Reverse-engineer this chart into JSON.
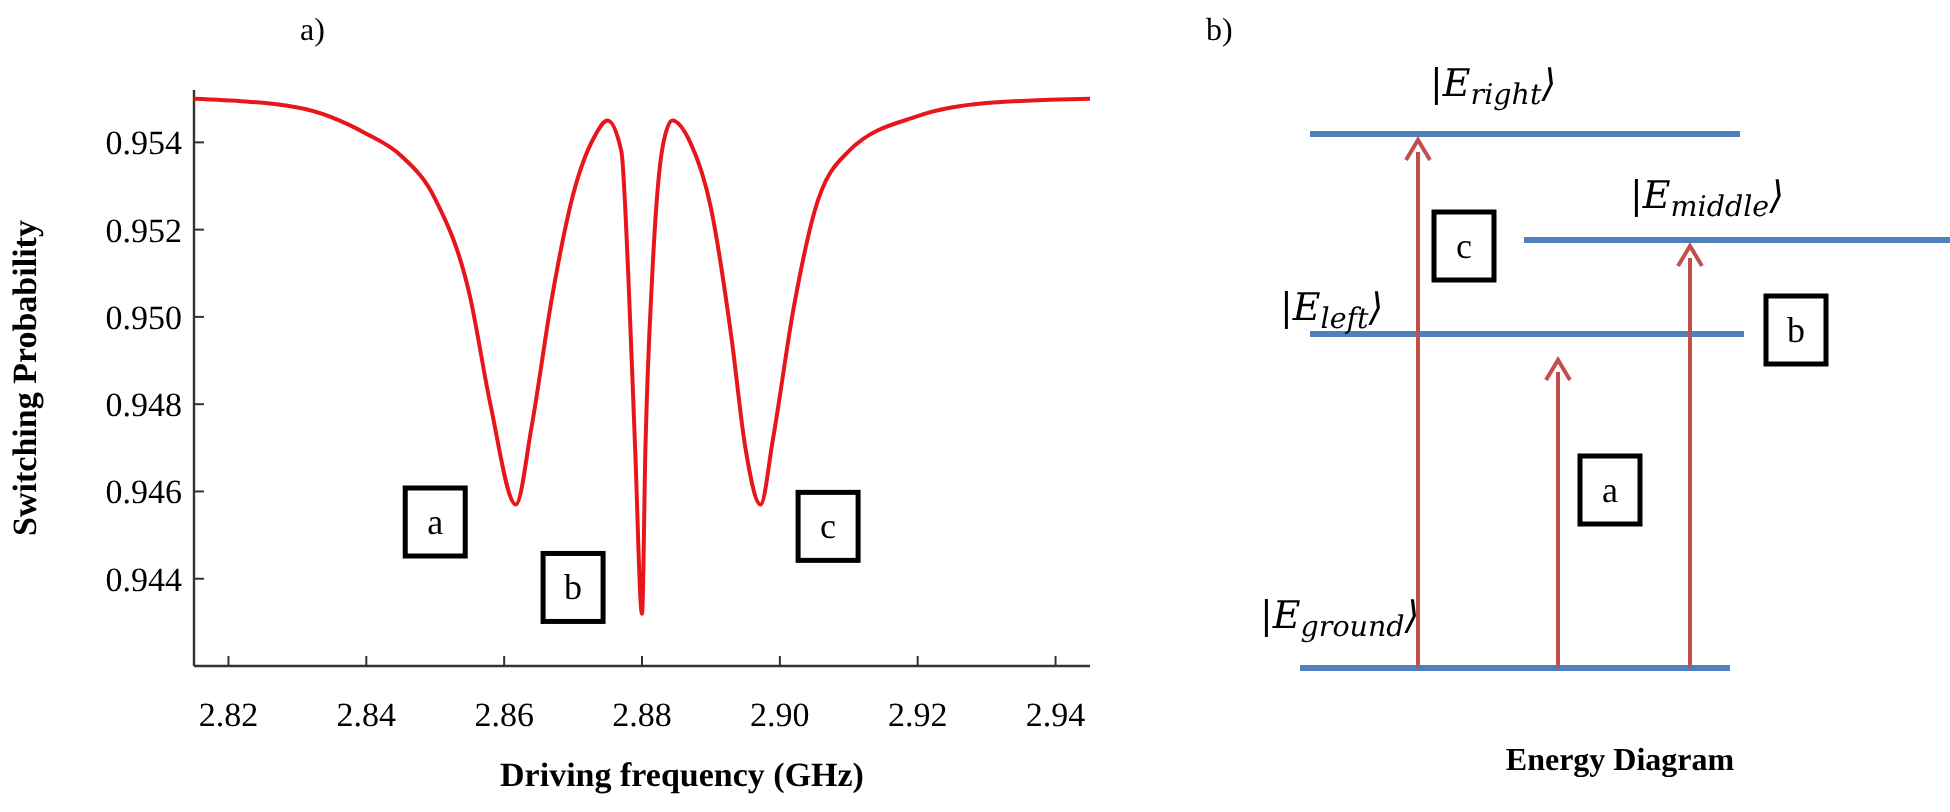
{
  "chart_data": [
    {
      "type": "line",
      "title": "a)",
      "xlabel": "Driving frequency (GHz)",
      "ylabel": "Switching Probability",
      "xlim": [
        2.815,
        2.945
      ],
      "xticks": [
        2.82,
        2.84,
        2.86,
        2.88,
        {
          "value": 2.9,
          "label": "2.90"
        },
        2.92,
        2.94
      ],
      "ylim": [
        0.942,
        0.9552
      ],
      "yticks": [
        0.944,
        0.946,
        0.948,
        {
          "value": 0.95,
          "label": "0.950"
        },
        0.952,
        0.954
      ],
      "marker": "none",
      "line_style": "solid",
      "series": [
        {
          "color": "#e8161b",
          "x": [
            2.815,
            2.83,
            2.84,
            2.845,
            2.85,
            2.855,
            2.858,
            2.8617,
            2.864,
            2.867,
            2.87,
            2.873,
            2.875,
            2.877,
            2.878,
            2.879,
            2.88,
            2.8805,
            2.8815,
            2.883,
            2.8844,
            2.887,
            2.89,
            2.893,
            2.895,
            2.8972,
            2.899,
            2.902,
            2.905,
            2.91,
            2.92,
            2.93,
            2.945
          ],
          "values": [
            0.955,
            0.9548,
            0.9542,
            0.9537,
            0.9527,
            0.9505,
            0.948,
            0.9457,
            0.9475,
            0.9505,
            0.9528,
            0.9541,
            0.9545,
            0.9538,
            0.951,
            0.947,
            0.9432,
            0.947,
            0.951,
            0.9539,
            0.9545,
            0.954,
            0.9525,
            0.9495,
            0.947,
            0.9457,
            0.9472,
            0.9502,
            0.9524,
            0.9538,
            0.9546,
            0.9549,
            0.955
          ]
        }
      ],
      "annotations": [
        {
          "text": "a",
          "x": 2.85,
          "y": 0.9453
        },
        {
          "text": "b",
          "x": 2.87,
          "y": 0.9438
        },
        {
          "text": "c",
          "x": 2.907,
          "y": 0.9452
        }
      ]
    },
    {
      "type": "other",
      "title": "b)",
      "xlabel": "Energy Diagram",
      "annotations": [
        "|E$_{right}$⟩",
        "|E$_{middle}$⟩",
        "|E$_{left}$⟩",
        "|E$_{ground}$⟩",
        "c",
        "b",
        "a"
      ]
    }
  ]
}
